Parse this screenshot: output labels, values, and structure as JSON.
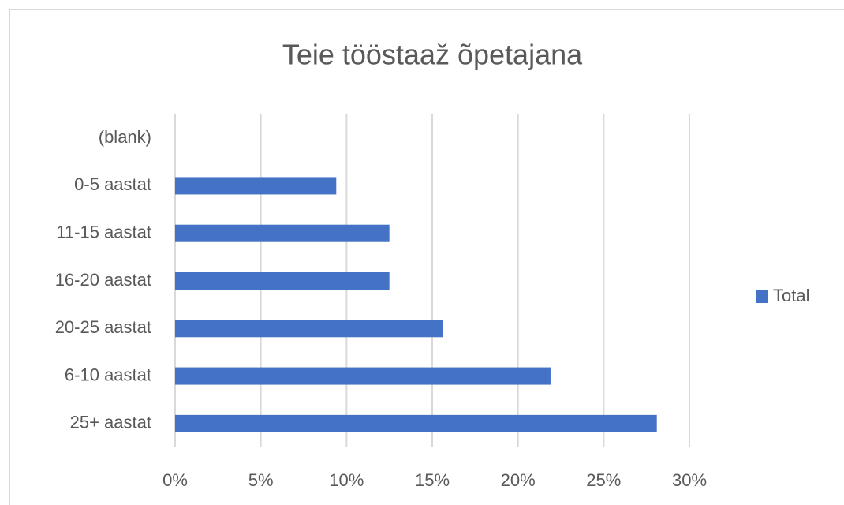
{
  "chart_data": {
    "type": "bar",
    "orientation": "horizontal",
    "title": "Teie tööstaaž õpetajana",
    "categories": [
      "(blank)",
      "0-5 aastat",
      "11-15 aastat",
      "16-20 aastat",
      "20-25 aastat",
      "6-10 aastat",
      "25+ aastat"
    ],
    "series": [
      {
        "name": "Total",
        "color": "#4472c4",
        "values": [
          null,
          9.4,
          12.5,
          12.5,
          15.6,
          21.9,
          28.1
        ]
      }
    ],
    "xlim": [
      0,
      30
    ],
    "xticks": [
      {
        "value": 0,
        "label": "0%"
      },
      {
        "value": 5,
        "label": "5%"
      },
      {
        "value": 10,
        "label": "10%"
      },
      {
        "value": 15,
        "label": "15%"
      },
      {
        "value": 20,
        "label": "20%"
      },
      {
        "value": 25,
        "label": "25%"
      },
      {
        "value": 30,
        "label": "30%"
      }
    ],
    "grid": true,
    "legend": "right"
  }
}
